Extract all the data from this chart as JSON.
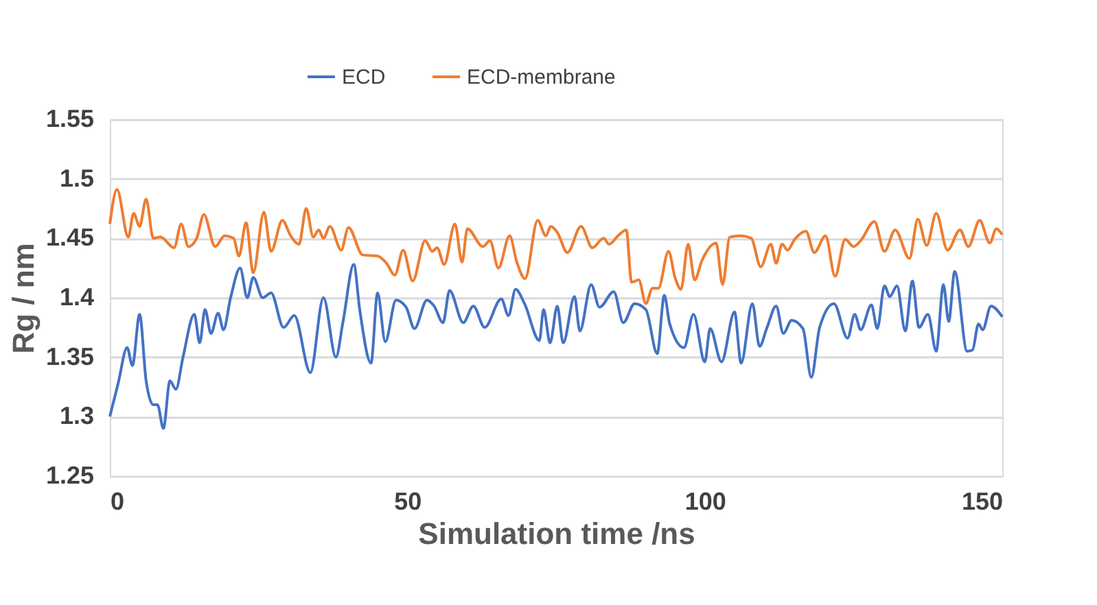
{
  "chart_data": {
    "type": "line",
    "xlabel": "Simulation time /ns",
    "ylabel": "Rg / nm",
    "xlim": [
      0,
      150
    ],
    "xticks": [
      0,
      50,
      100,
      150
    ],
    "ylim": [
      1.25,
      1.55
    ],
    "yticks": [
      1.25,
      1.3,
      1.35,
      1.4,
      1.45,
      1.5,
      1.55
    ],
    "grid": "y",
    "legend": "top",
    "line_style": "solid",
    "marker": "none",
    "series": [
      {
        "name": "ECD",
        "color": "#4472c4",
        "x": [
          0,
          1.4,
          2.9,
          3.8,
          5,
          6.1,
          7.3,
          8,
          9,
          10.1,
          11.1,
          12.3,
          14.2,
          15.1,
          16,
          17,
          18.2,
          19.1,
          20.3,
          21.9,
          23.1,
          24.1,
          25.7,
          27.1,
          29.2,
          31,
          33.7,
          35.9,
          38,
          39.2,
          41,
          42,
          43.9,
          45,
          46.3,
          48.1,
          49.8,
          51.2,
          53.3,
          54.5,
          56,
          57.1,
          59.4,
          61.1,
          63,
          65.8,
          67,
          68.2,
          69.7,
          72.2,
          72.9,
          74,
          75.2,
          76.2,
          78.1,
          79,
          80.9,
          82.3,
          84.7,
          86.3,
          88.2,
          90.1,
          92,
          93.2,
          94.1,
          96.5,
          98.1,
          100,
          100.9,
          102.8,
          105,
          106.1,
          108,
          109.2,
          110.4,
          112,
          113.2,
          114.6,
          116.5,
          117.9,
          119.3,
          121.7,
          124,
          125.2,
          126.2,
          128,
          129,
          130.2,
          131.1,
          132.3,
          133.7,
          134.9,
          136,
          137.5,
          138.9,
          140.1,
          141,
          142,
          144.1,
          145,
          146,
          146.7,
          148.1,
          150
        ],
        "values": [
          1.3,
          1.328,
          1.358,
          1.343,
          1.386,
          1.33,
          1.31,
          1.31,
          1.29,
          1.33,
          1.323,
          1.35,
          1.386,
          1.362,
          1.39,
          1.37,
          1.387,
          1.373,
          1.4,
          1.425,
          1.4,
          1.417,
          1.4,
          1.404,
          1.375,
          1.385,
          1.337,
          1.4,
          1.35,
          1.38,
          1.428,
          1.39,
          1.345,
          1.404,
          1.363,
          1.398,
          1.392,
          1.374,
          1.398,
          1.393,
          1.379,
          1.406,
          1.379,
          1.393,
          1.375,
          1.399,
          1.385,
          1.407,
          1.395,
          1.364,
          1.39,
          1.362,
          1.393,
          1.362,
          1.401,
          1.372,
          1.411,
          1.392,
          1.405,
          1.379,
          1.395,
          1.39,
          1.353,
          1.402,
          1.378,
          1.358,
          1.386,
          1.346,
          1.374,
          1.346,
          1.388,
          1.345,
          1.395,
          1.359,
          1.374,
          1.393,
          1.37,
          1.381,
          1.374,
          1.333,
          1.375,
          1.395,
          1.366,
          1.386,
          1.373,
          1.394,
          1.374,
          1.41,
          1.401,
          1.41,
          1.372,
          1.414,
          1.375,
          1.386,
          1.355,
          1.411,
          1.38,
          1.422,
          1.355,
          1.356,
          1.378,
          1.373,
          1.393,
          1.384
        ]
      },
      {
        "name": "ECD-membrane",
        "color": "#ed7d31",
        "x": [
          0,
          1.2,
          3.1,
          4,
          5,
          6.1,
          7.3,
          8.5,
          10.8,
          12,
          13.2,
          14.6,
          15.8,
          17.7,
          19.3,
          20.8,
          21.7,
          22.9,
          24.1,
          25.9,
          27.1,
          29,
          30.4,
          31.8,
          33,
          34.2,
          35.1,
          35.9,
          37,
          38.9,
          40.1,
          42.5,
          45,
          46.5,
          47.9,
          49.3,
          50.9,
          53,
          54.2,
          55,
          56.2,
          58,
          59.2,
          60.1,
          62.7,
          63.9,
          65.3,
          67.2,
          68.4,
          69.8,
          71.9,
          73.3,
          74.1,
          75.2,
          76.9,
          79.2,
          81.1,
          83,
          83.9,
          85.4,
          86.8,
          87.7,
          88.9,
          90.1,
          91.2,
          92.2,
          93.9,
          95,
          96,
          97.2,
          98.3,
          99.5,
          101.9,
          103,
          104.2,
          106.1,
          107.8,
          109.4,
          111.1,
          112,
          113,
          113.9,
          115.1,
          117,
          118.4,
          120.3,
          121.9,
          123.6,
          125,
          126.2,
          128.5,
          130.2,
          132,
          134.4,
          135.8,
          137.3,
          138.9,
          140.8,
          142.9,
          144.3,
          146.2,
          147.9,
          149,
          150
        ],
        "values": [
          1.462,
          1.491,
          1.451,
          1.471,
          1.46,
          1.483,
          1.45,
          1.451,
          1.442,
          1.462,
          1.443,
          1.45,
          1.47,
          1.443,
          1.452,
          1.45,
          1.435,
          1.463,
          1.421,
          1.472,
          1.439,
          1.465,
          1.452,
          1.445,
          1.475,
          1.451,
          1.457,
          1.45,
          1.46,
          1.44,
          1.459,
          1.436,
          1.435,
          1.429,
          1.419,
          1.44,
          1.414,
          1.448,
          1.439,
          1.442,
          1.428,
          1.462,
          1.43,
          1.458,
          1.443,
          1.448,
          1.425,
          1.452,
          1.43,
          1.416,
          1.465,
          1.452,
          1.46,
          1.455,
          1.438,
          1.46,
          1.442,
          1.45,
          1.445,
          1.452,
          1.457,
          1.413,
          1.415,
          1.395,
          1.408,
          1.408,
          1.439,
          1.417,
          1.407,
          1.445,
          1.415,
          1.431,
          1.446,
          1.411,
          1.451,
          1.452,
          1.45,
          1.426,
          1.445,
          1.429,
          1.445,
          1.44,
          1.449,
          1.456,
          1.438,
          1.452,
          1.418,
          1.449,
          1.443,
          1.448,
          1.464,
          1.439,
          1.457,
          1.433,
          1.466,
          1.444,
          1.471,
          1.44,
          1.457,
          1.443,
          1.465,
          1.446,
          1.458,
          1.453
        ]
      }
    ]
  }
}
